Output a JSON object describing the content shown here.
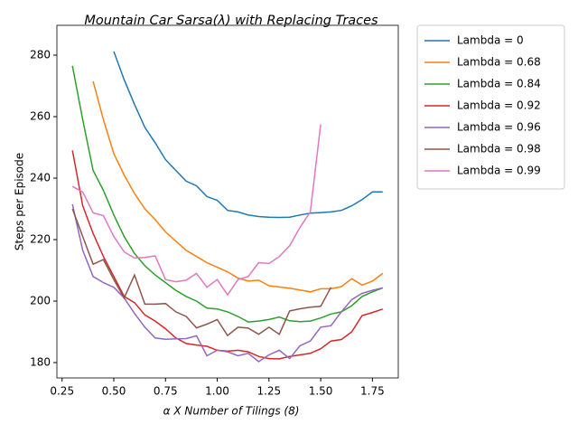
{
  "chart_data": {
    "type": "line",
    "title": "Mountain Car Sarsa(λ) with Replacing Traces",
    "x_label": "α X Number of Tilings (8)",
    "y_label": "Steps per Episode",
    "x": [
      0.3,
      0.35,
      0.4,
      0.45,
      0.5,
      0.55,
      0.6,
      0.65,
      0.7,
      0.75,
      0.8,
      0.85,
      0.9,
      0.95,
      1.0,
      1.05,
      1.1,
      1.15,
      1.2,
      1.25,
      1.3,
      1.35,
      1.4,
      1.45,
      1.5,
      1.55,
      1.6,
      1.65,
      1.7,
      1.75,
      1.8
    ],
    "series": [
      {
        "name": "Lambda = 0",
        "color": "#1f77b4",
        "values": [
          null,
          null,
          null,
          null,
          281.2,
          272,
          264,
          256.5,
          251.5,
          246,
          242.5,
          239,
          237.5,
          234,
          232.8,
          229.5,
          229,
          228,
          227.5,
          227.3,
          227.2,
          227.3,
          228,
          228.6,
          228.8,
          229,
          229.5,
          231,
          233,
          235.5,
          235.5
        ]
      },
      {
        "name": "Lambda = 0.68",
        "color": "#ff7f0e",
        "values": [
          null,
          null,
          271.5,
          259,
          248,
          241,
          235,
          230,
          226.5,
          222.5,
          219.5,
          216.5,
          214.5,
          212.5,
          211,
          209.5,
          207.5,
          206.5,
          206.8,
          205,
          204.6,
          204.2,
          203.6,
          203,
          204,
          204,
          204.7,
          207.3,
          205.2,
          206.5,
          209
        ]
      },
      {
        "name": "Lambda = 0.84",
        "color": "#2ca02c",
        "values": [
          276.5,
          259,
          242.5,
          236,
          228,
          221,
          215.5,
          211.5,
          208.5,
          206,
          203.5,
          201.5,
          200,
          197.7,
          197.4,
          196.5,
          195,
          193.2,
          193.5,
          194,
          194.8,
          193.6,
          193.3,
          193.5,
          194.5,
          195.8,
          196.5,
          198.5,
          201.5,
          203,
          204.3
        ]
      },
      {
        "name": "Lambda = 0.92",
        "color": "#d62728",
        "values": [
          249,
          231,
          222,
          214.5,
          208,
          201.5,
          199.5,
          195.5,
          193.5,
          191,
          188,
          186.2,
          185.7,
          185.3,
          184,
          183.7,
          184,
          183.5,
          182,
          181.3,
          181.2,
          182,
          182.5,
          183,
          184.5,
          187,
          187.5,
          190,
          195.3,
          196.3,
          197.4
        ]
      },
      {
        "name": "Lambda = 0.96",
        "color": "#9467bd",
        "values": [
          231.5,
          216.5,
          208,
          206,
          204.5,
          201,
          196,
          191.5,
          188,
          187.6,
          187.7,
          187.8,
          188.7,
          182.2,
          184,
          183.5,
          182.2,
          183,
          180.3,
          182.5,
          184,
          181.3,
          185.5,
          187,
          191.5,
          192,
          196.5,
          200.5,
          202.5,
          203.5,
          204.3
        ]
      },
      {
        "name": "Lambda = 0.98",
        "color": "#8c564b",
        "values": [
          230,
          221,
          212,
          213.5,
          207,
          201,
          208.5,
          199,
          199,
          199.2,
          196.5,
          195,
          191.3,
          192.5,
          194,
          188.8,
          191.5,
          191.2,
          189.2,
          191.5,
          189.2,
          196.8,
          197.5,
          198,
          198.3,
          204.5,
          null,
          null,
          null,
          null,
          null
        ]
      },
      {
        "name": "Lambda = 0.99",
        "color": "#e377c2",
        "values": [
          237.3,
          235.5,
          228.7,
          227.8,
          221,
          216,
          214,
          214.2,
          214.7,
          207,
          206.3,
          206.8,
          209,
          204.5,
          207,
          202,
          207,
          208,
          212.5,
          212.2,
          214.5,
          218,
          224,
          229,
          257.5,
          null,
          null,
          null,
          null,
          null,
          null
        ]
      }
    ],
    "xlim": [
      0.225,
      1.875
    ],
    "ylim": [
      175,
      289.7
    ],
    "xticks": [
      0.25,
      {
        "value": 0.5,
        "label": "0.50"
      },
      0.75,
      {
        "value": 1,
        "label": "1.00"
      },
      1.25,
      {
        "value": 1.5,
        "label": "1.50"
      },
      1.75
    ],
    "yticks": [
      180,
      200,
      220,
      240,
      260,
      280
    ],
    "legend": "outside-upper-right"
  }
}
